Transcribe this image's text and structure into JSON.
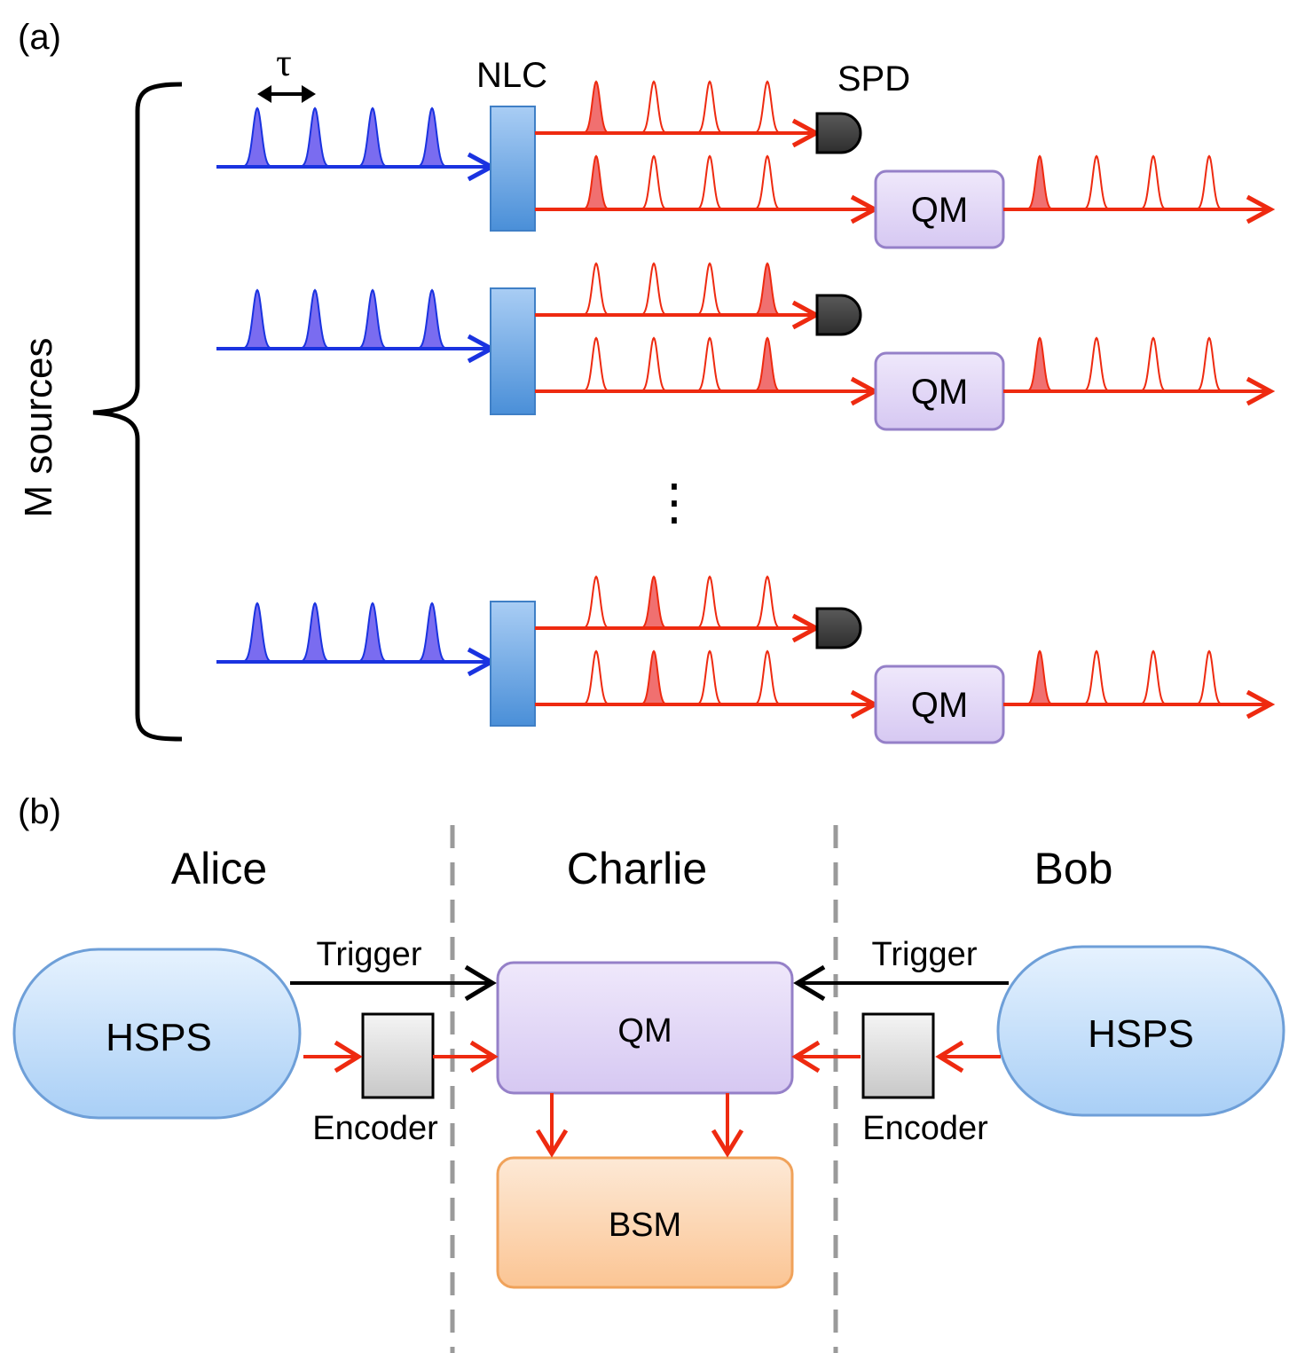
{
  "panel_a": {
    "label": "(a)",
    "tau_label": "τ",
    "nlc_label": "NLC",
    "spd_label": "SPD",
    "sources_label": "M sources",
    "ellipsis": "⋮",
    "memory_label": "QM",
    "rows": [
      {
        "heralded_pulse": 1
      },
      {
        "heralded_pulse": 4
      },
      {
        "heralded_pulse": 2
      }
    ],
    "colors": {
      "pump": "#1a33e0",
      "pump_fill": "#7a6cf0",
      "signal": "#ee2a10",
      "signal_fill": "#f07070",
      "crystal": "#5a9de0",
      "memory": "#e2d6f6",
      "detector": "#444444"
    }
  },
  "panel_b": {
    "label": "(b)",
    "alice": {
      "name": "Alice",
      "source": "HSPS",
      "trigger": "Trigger",
      "encoder": "Encoder"
    },
    "charlie": {
      "name": "Charlie",
      "memory": "QM",
      "measurement": "BSM"
    },
    "bob": {
      "name": "Bob",
      "source": "HSPS",
      "trigger": "Trigger",
      "encoder": "Encoder"
    },
    "colors": {
      "source": "#bcdcfa",
      "memory": "#e5daf7",
      "bsm": "#fcd0a8",
      "encoder": "#dddddd",
      "signal": "#ee2a10",
      "trigger": "#000000",
      "divider": "#9a9a9a"
    }
  }
}
